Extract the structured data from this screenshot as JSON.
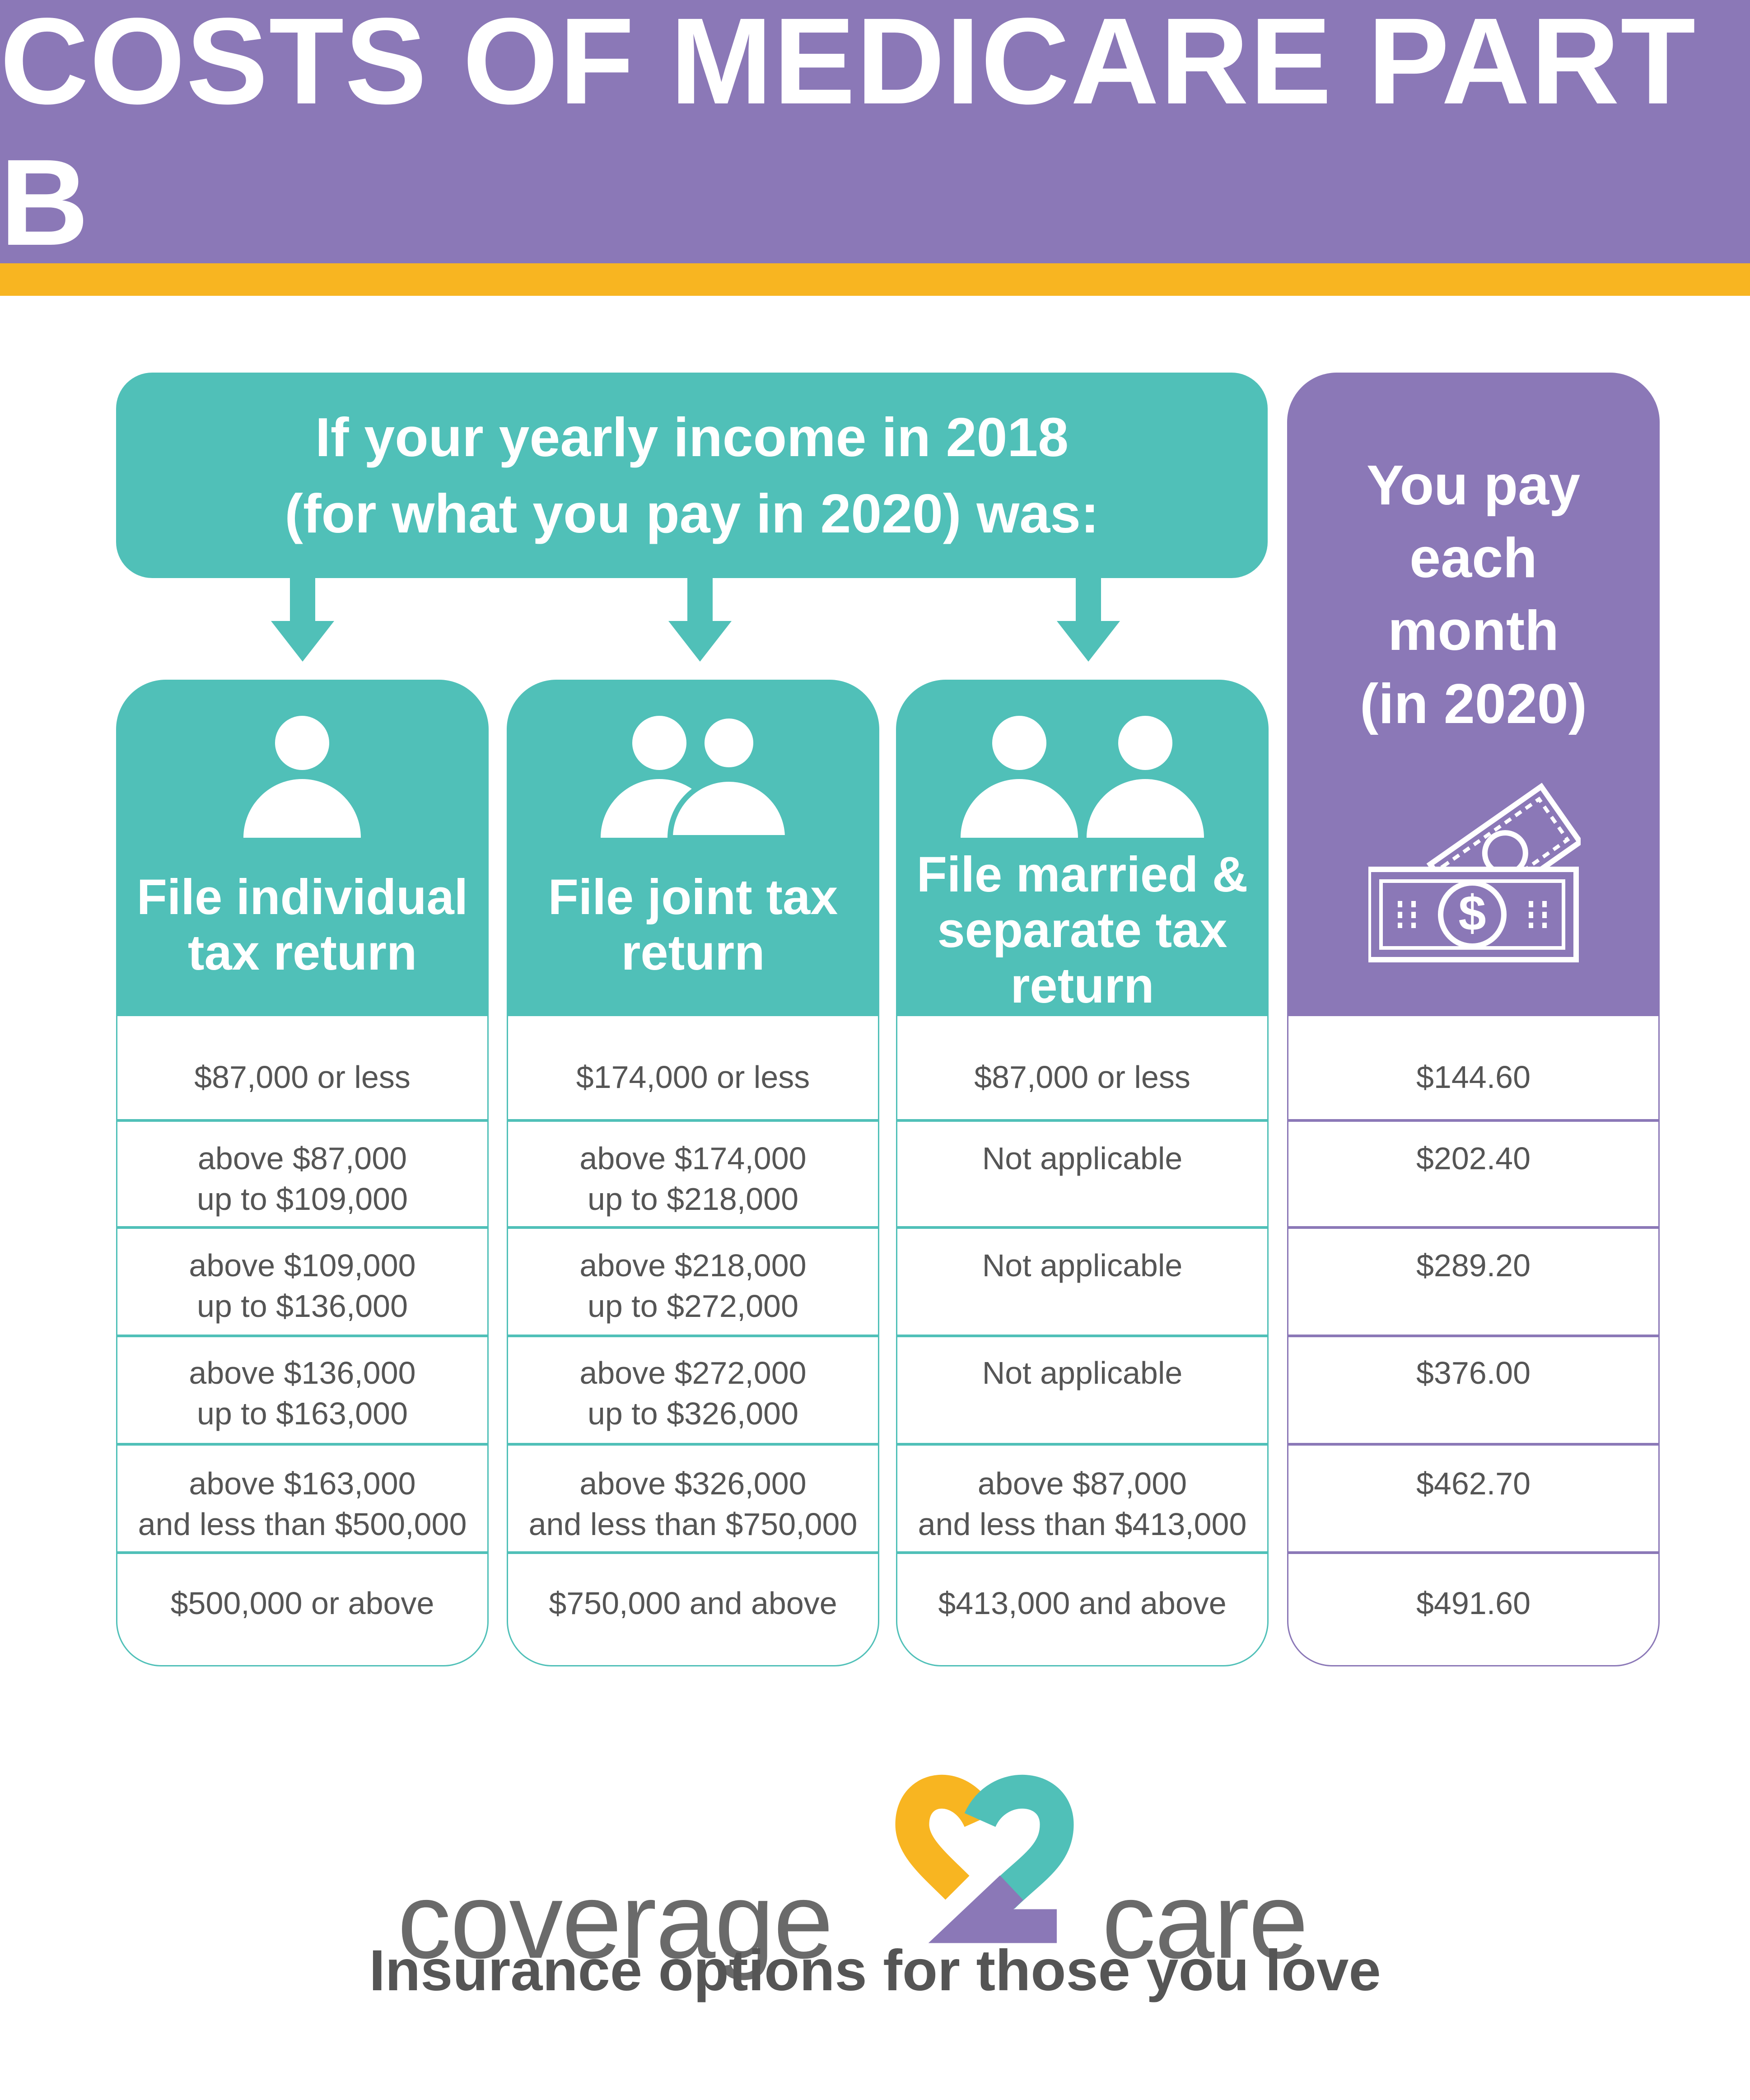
{
  "header": {
    "title": "COSTS OF MEDICARE PART B"
  },
  "colors": {
    "purple": "#8b78b7",
    "teal": "#50c0b8",
    "orange": "#f8b521",
    "text_gray": "#555555"
  },
  "income_box": {
    "line1": "If your yearly income in 2018",
    "line2": "(for what you pay in 2020) was:"
  },
  "columns": [
    {
      "icon": "single-person-icon",
      "title_line1": "File individual",
      "title_line2": "tax return",
      "rows": [
        {
          "line1": "$87,000 or less",
          "line2": ""
        },
        {
          "line1": "above $87,000",
          "line2": "up to $109,000"
        },
        {
          "line1": "above $109,000",
          "line2": "up to $136,000"
        },
        {
          "line1": "above $136,000",
          "line2": "up to $163,000"
        },
        {
          "line1": "above $163,000",
          "line2": "and less than $500,000"
        },
        {
          "line1": "$500,000 or above",
          "line2": ""
        }
      ]
    },
    {
      "icon": "couple-icon",
      "title_line1": "File joint tax",
      "title_line2": "return",
      "rows": [
        {
          "line1": "$174,000 or less",
          "line2": ""
        },
        {
          "line1": "above $174,000",
          "line2": "up to $218,000"
        },
        {
          "line1": "above $218,000",
          "line2": "up to $272,000"
        },
        {
          "line1": "above $272,000",
          "line2": "up to $326,000"
        },
        {
          "line1": "above $326,000",
          "line2": "and less than $750,000"
        },
        {
          "line1": "$750,000 and above",
          "line2": ""
        }
      ]
    },
    {
      "icon": "two-separate-people-icon",
      "title_line1": "File married &",
      "title_line2": "separate tax",
      "title_line3": "return",
      "rows": [
        {
          "line1": "$87,000 or less",
          "line2": ""
        },
        {
          "line1": "Not applicable",
          "line2": ""
        },
        {
          "line1": "Not applicable",
          "line2": ""
        },
        {
          "line1": "Not applicable",
          "line2": ""
        },
        {
          "line1": "above $87,000",
          "line2": "and less than $413,000"
        },
        {
          "line1": "$413,000 and above",
          "line2": ""
        }
      ]
    }
  ],
  "pay_column": {
    "title_line1": "You pay",
    "title_line2": "each",
    "title_line3": "month",
    "title_line4": "(in 2020)",
    "icon": "money-bills-icon",
    "rows": [
      "$144.60",
      "$202.40",
      "$289.20",
      "$376.00",
      "$462.70",
      "$491.60"
    ]
  },
  "logo": {
    "word1": "coverage",
    "word2": "care",
    "numeral": "2"
  },
  "tagline": "Insurance options for those you love"
}
